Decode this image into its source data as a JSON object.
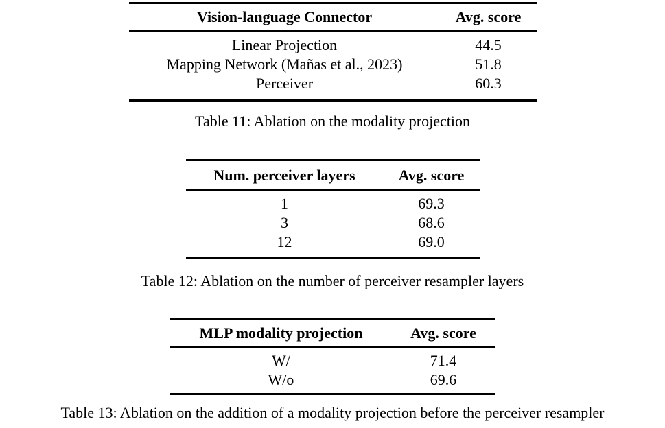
{
  "page": {
    "background_color": "#ffffff",
    "text_color": "#000000",
    "rule_color": "#000000"
  },
  "tables": [
    {
      "columns": [
        "Vision-language Connector",
        "Avg. score"
      ],
      "rows": [
        [
          "Linear Projection",
          "44.5"
        ],
        [
          "Mapping Network (Mañas et al., 2023)",
          "51.8"
        ],
        [
          "Perceiver",
          "60.3"
        ]
      ],
      "caption": "Table 11: Ablation on the modality projection"
    },
    {
      "columns": [
        "Num. perceiver layers",
        "Avg. score"
      ],
      "rows": [
        [
          "1",
          "69.3"
        ],
        [
          "3",
          "68.6"
        ],
        [
          "12",
          "69.0"
        ]
      ],
      "caption": "Table 12: Ablation on the number of perceiver resampler layers"
    },
    {
      "columns": [
        "MLP modality projection",
        "Avg. score"
      ],
      "rows": [
        [
          "W/",
          "71.4"
        ],
        [
          "W/o",
          "69.6"
        ]
      ],
      "caption": "Table 13: Ablation on the addition of a modality projection before the perceiver resampler"
    }
  ]
}
